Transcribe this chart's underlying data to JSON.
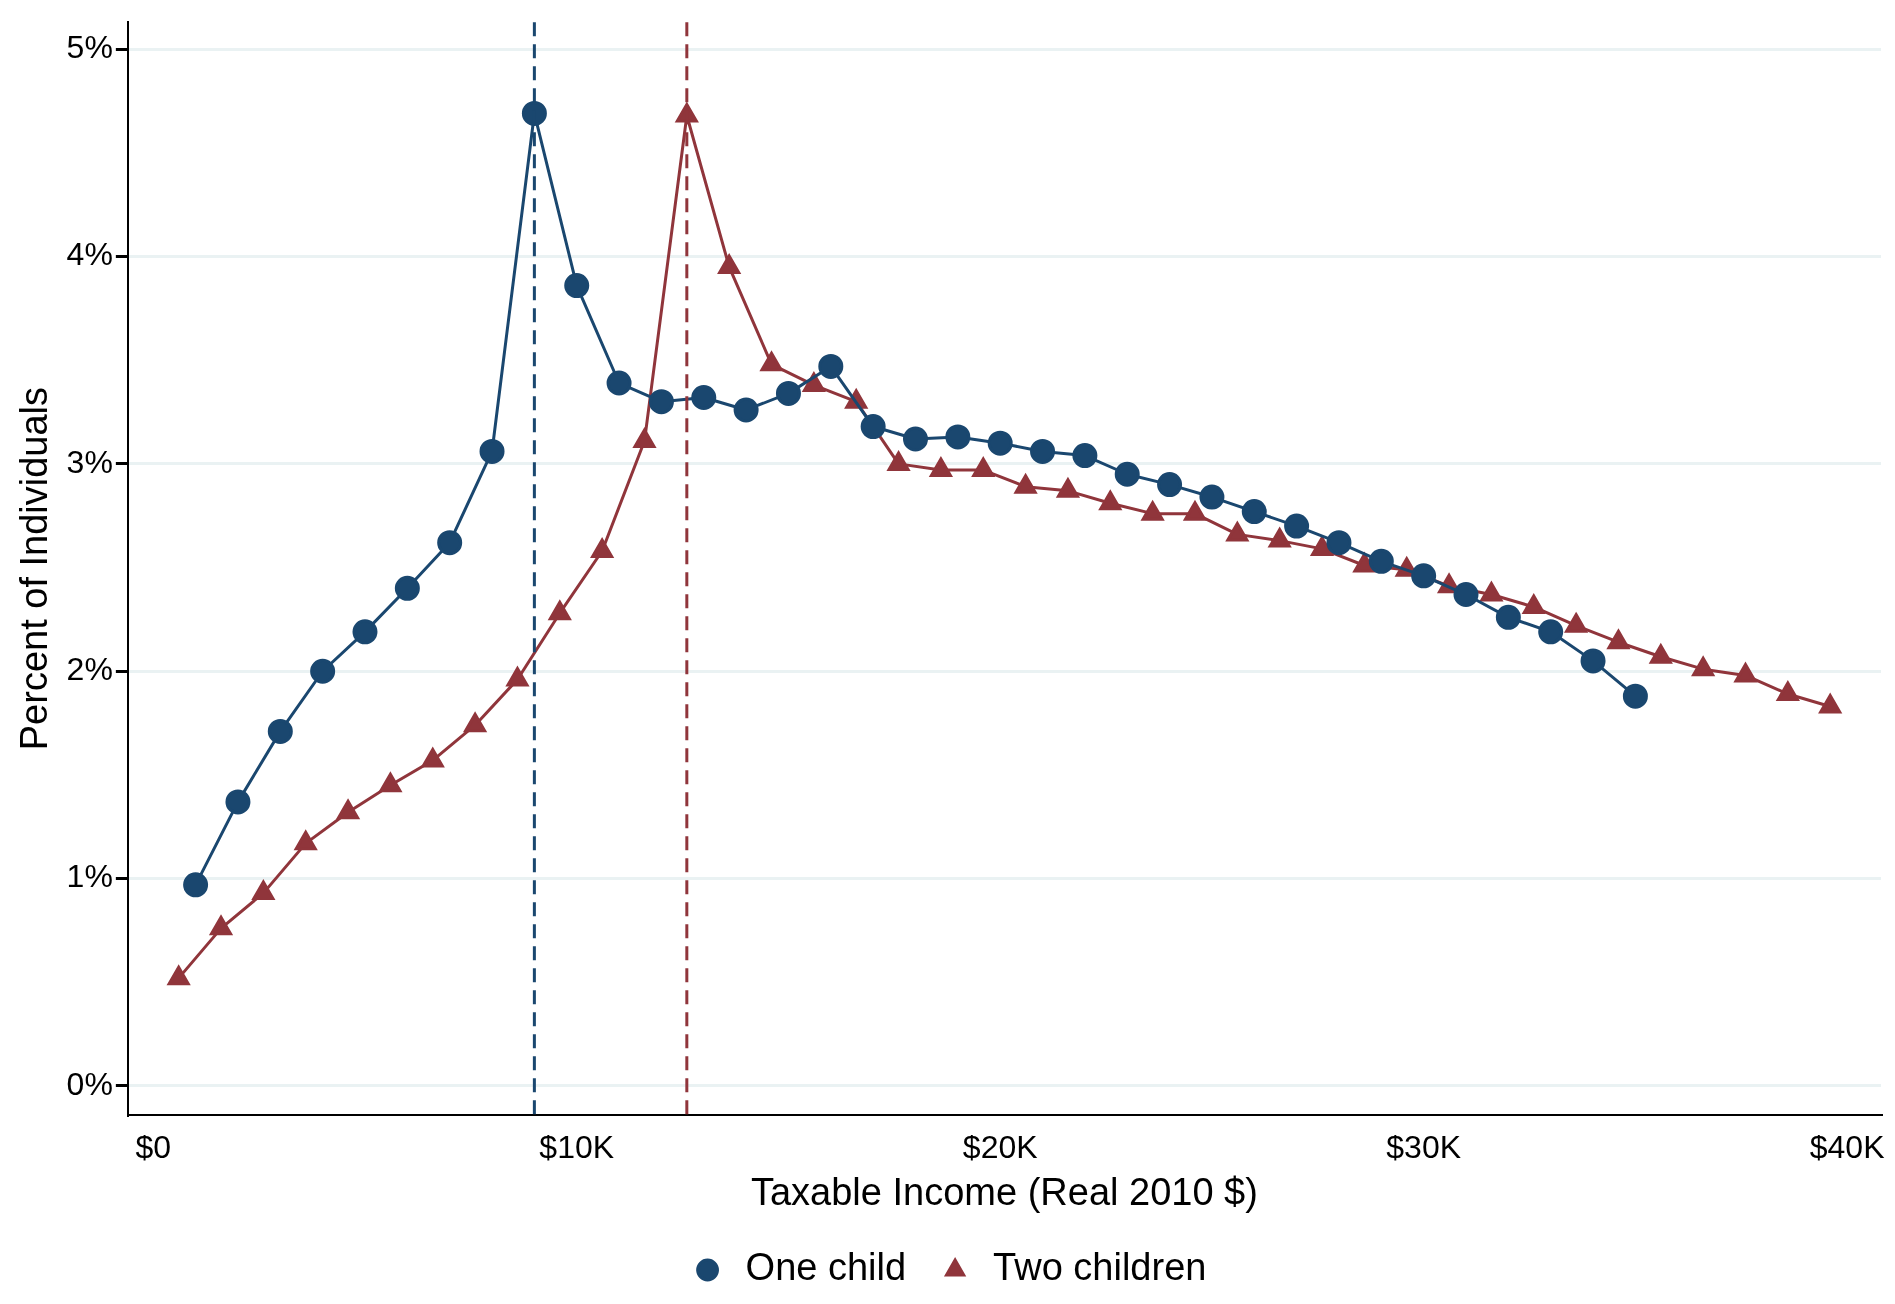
{
  "chart_data": {
    "type": "line",
    "xlabel": "Taxable Income (Real 2010 $)",
    "ylabel": "Percent of Individuals",
    "xlim": [
      -0.6,
      40.8
    ],
    "ylim": [
      -0.14,
      5.13
    ],
    "xticks": [
      {
        "value": 0,
        "label": "$0"
      },
      {
        "value": 10,
        "label": "$10K"
      },
      {
        "value": 20,
        "label": "$20K"
      },
      {
        "value": 30,
        "label": "$30K"
      },
      {
        "value": 40,
        "label": "$40K"
      }
    ],
    "yticks": [
      {
        "value": 0,
        "label": "0%"
      },
      {
        "value": 1,
        "label": "1%"
      },
      {
        "value": 2,
        "label": "2%"
      },
      {
        "value": 3,
        "label": "3%"
      },
      {
        "value": 4,
        "label": "4%"
      },
      {
        "value": 5,
        "label": "5%"
      }
    ],
    "grid": "y",
    "legend": "bottom",
    "line_style": "solid",
    "ref_lines": [
      {
        "axis": "x",
        "value": 9,
        "color": "#1a476f",
        "line_style": "dashed"
      },
      {
        "axis": "x",
        "value": 12.6,
        "color": "#90353b",
        "line_style": "dashed"
      }
    ],
    "series": [
      {
        "name": "One child",
        "color": "#1a476f",
        "marker": "circle",
        "x": [
          1,
          2,
          3,
          4,
          5,
          6,
          7,
          8,
          9,
          10,
          11,
          12,
          13,
          14,
          15,
          16,
          17,
          18,
          19,
          20,
          21,
          22,
          23,
          24,
          25,
          26,
          27,
          28,
          29,
          30,
          31,
          32,
          33,
          34,
          35
        ],
        "values": [
          0.97,
          1.37,
          1.71,
          2.0,
          2.19,
          2.4,
          2.62,
          3.06,
          4.69,
          3.86,
          3.39,
          3.3,
          3.32,
          3.26,
          3.34,
          3.47,
          3.18,
          3.12,
          3.13,
          3.1,
          3.06,
          3.04,
          2.95,
          2.9,
          2.84,
          2.77,
          2.7,
          2.62,
          2.53,
          2.46,
          2.37,
          2.26,
          2.19,
          2.05,
          1.88
        ]
      },
      {
        "name": "Two children",
        "color": "#90353b",
        "marker": "triangle",
        "x": [
          0.6,
          1.6,
          2.6,
          3.6,
          4.6,
          5.6,
          6.6,
          7.6,
          8.6,
          9.6,
          10.6,
          11.6,
          12.6,
          13.6,
          14.6,
          15.6,
          16.6,
          17.6,
          18.6,
          19.6,
          20.6,
          21.6,
          22.6,
          23.6,
          24.6,
          25.6,
          26.6,
          27.6,
          28.6,
          29.6,
          30.6,
          31.6,
          32.6,
          33.6,
          34.6,
          35.6,
          36.6,
          37.6,
          38.6,
          39.6
        ],
        "values": [
          0.52,
          0.76,
          0.93,
          1.17,
          1.32,
          1.45,
          1.57,
          1.74,
          1.96,
          2.28,
          2.58,
          3.11,
          4.68,
          3.95,
          3.48,
          3.38,
          3.3,
          3.0,
          2.97,
          2.97,
          2.89,
          2.87,
          2.81,
          2.76,
          2.76,
          2.66,
          2.63,
          2.59,
          2.51,
          2.49,
          2.41,
          2.37,
          2.31,
          2.22,
          2.14,
          2.07,
          2.01,
          1.98,
          1.89,
          1.83
        ]
      }
    ]
  }
}
